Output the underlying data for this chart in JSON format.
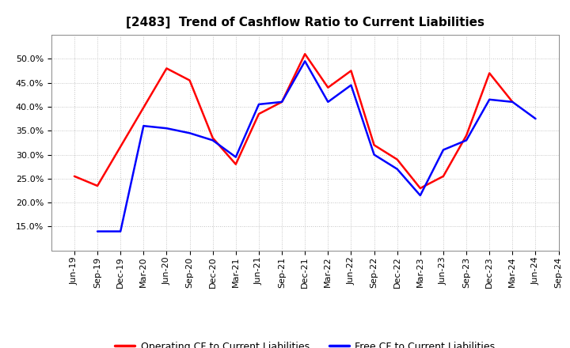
{
  "title": "[2483]  Trend of Cashflow Ratio to Current Liabilities",
  "x_labels": [
    "Jun-19",
    "Sep-19",
    "Dec-19",
    "Mar-20",
    "Jun-20",
    "Sep-20",
    "Dec-20",
    "Mar-21",
    "Jun-21",
    "Sep-21",
    "Dec-21",
    "Mar-22",
    "Jun-22",
    "Sep-22",
    "Dec-22",
    "Mar-23",
    "Jun-23",
    "Sep-23",
    "Dec-23",
    "Mar-24",
    "Jun-24",
    "Sep-24"
  ],
  "operating_cf": [
    25.5,
    23.5,
    null,
    null,
    48.0,
    45.5,
    33.5,
    28.0,
    38.5,
    41.0,
    51.0,
    44.0,
    47.5,
    32.0,
    29.0,
    23.0,
    25.5,
    34.0,
    47.0,
    41.0,
    null,
    null
  ],
  "free_cf": [
    null,
    14.0,
    14.0,
    36.0,
    35.5,
    34.5,
    33.0,
    29.5,
    40.5,
    41.0,
    49.5,
    41.0,
    44.5,
    30.0,
    27.0,
    21.5,
    31.0,
    33.0,
    41.5,
    41.0,
    37.5,
    null
  ],
  "ylim_min": 10.0,
  "ylim_max": 55.0,
  "yticks": [
    15.0,
    20.0,
    25.0,
    30.0,
    35.0,
    40.0,
    45.0,
    50.0
  ],
  "operating_color": "#ff0000",
  "free_color": "#0000ff",
  "bg_color": "#ffffff",
  "grid_color": "#b0b0b0",
  "legend_op": "Operating CF to Current Liabilities",
  "legend_free": "Free CF to Current Liabilities",
  "title_fontsize": 11,
  "tick_fontsize": 8,
  "legend_fontsize": 9,
  "line_width": 1.8
}
